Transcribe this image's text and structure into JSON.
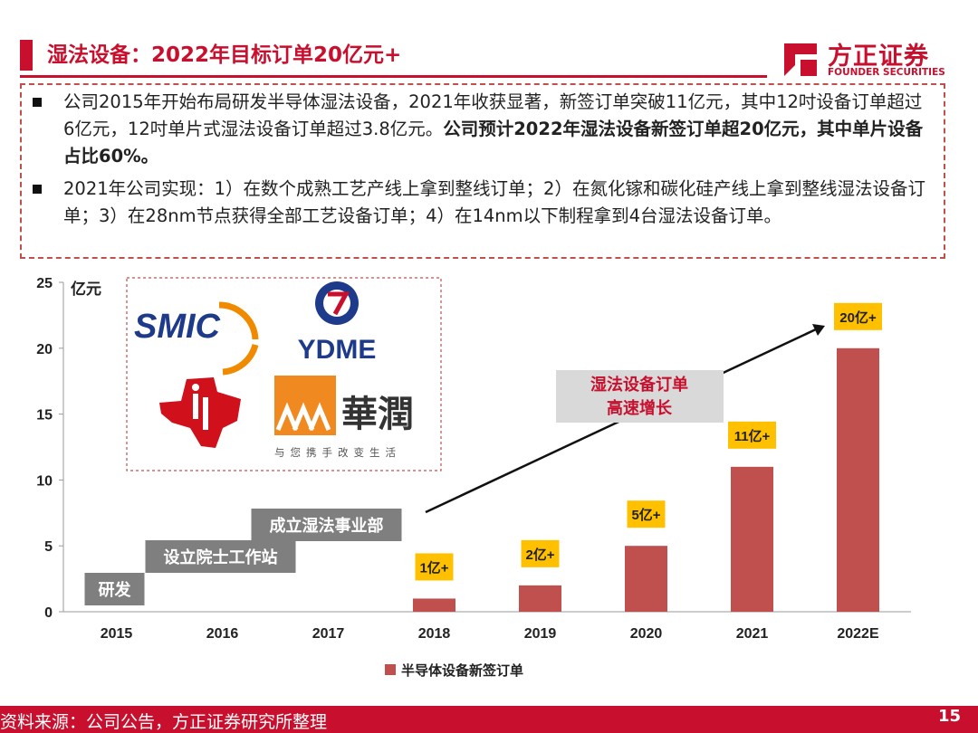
{
  "header": {
    "title": "湿法设备：2022年目标订单20亿元+",
    "logo_cn": "方正证券",
    "logo_en": "FOUNDER SECURITIES",
    "brand_color": "#c8102e"
  },
  "bullets": [
    {
      "text": "公司2015年开始布局研发半导体湿法设备，2021年收获显著，新签订单突破11亿元，其中12吋设备订单超过6亿元，12吋单片式湿法设备订单超过3.8亿元。",
      "bold": "公司预计2022年湿法设备新签订单超20亿元，其中单片设备占比60%。"
    },
    {
      "text": "2021年公司实现：1）在数个成熟工艺产线上拿到整线订单；2）在氮化镓和碳化硅产线上拿到整线湿法设备订单；3）在28nm节点获得全部工艺设备订单；4）在14nm以下制程拿到4台湿法设备订单。",
      "bold": ""
    }
  ],
  "logos": {
    "smic": "SMIC",
    "ydme": "YDME",
    "huarun": "華潤",
    "huarun_slogan": "与您携手改变生活"
  },
  "chart_data": {
    "type": "bar",
    "categories": [
      "2015",
      "2016",
      "2017",
      "2018",
      "2019",
      "2020",
      "2021",
      "2022E"
    ],
    "series": [
      {
        "name": "半导体设备新签订单",
        "values": [
          null,
          null,
          null,
          1,
          2,
          5,
          11,
          20
        ],
        "color": "#c0504d"
      }
    ],
    "data_labels": [
      "",
      "",
      "",
      "1亿+",
      "2亿+",
      "5亿+",
      "11亿+",
      "20亿+"
    ],
    "ylabel": "亿元",
    "ylim": [
      0,
      25
    ],
    "yticks": [
      0,
      5,
      10,
      15,
      20,
      25
    ],
    "legend_position": "bottom",
    "grid": false,
    "milestones": [
      {
        "label": "研发",
        "year": "2015"
      },
      {
        "label": "设立院士工作站",
        "year": "2016"
      },
      {
        "label": "成立湿法事业部",
        "year": "2017"
      }
    ],
    "annotation": {
      "line1": "湿法设备订单",
      "line2": "高速增长"
    },
    "label_color": "#ffc000",
    "milestone_color": "#7f7f7f"
  },
  "footer": {
    "source": "资料来源：公司公告，方正证券研究所整理",
    "page": "15"
  }
}
